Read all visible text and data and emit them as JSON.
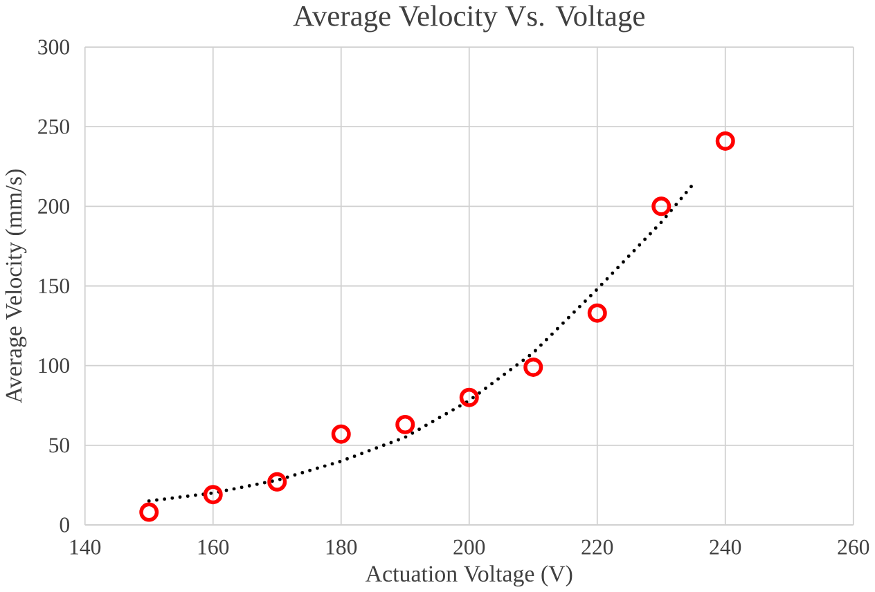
{
  "chart_data": {
    "type": "scatter",
    "title": "Average Velocity Vs. Voltage",
    "xlabel": "Actuation Voltage (V)",
    "ylabel": "Average Velocity (mm/s)",
    "x": [
      150,
      160,
      170,
      180,
      190,
      200,
      210,
      220,
      230,
      240
    ],
    "series": [
      {
        "color": "#ff0000",
        "values": [
          8,
          19,
          27,
          57,
          63,
          80,
          99,
          133,
          200,
          241
        ],
        "marker": "circle"
      },
      {
        "type": "line",
        "color": "#000000",
        "x": [
          150,
          160,
          170,
          180,
          190,
          200,
          210,
          220,
          230,
          235
        ],
        "values": [
          15,
          20,
          28,
          40,
          55,
          78,
          108,
          148,
          190,
          214
        ],
        "line_style": "dotted",
        "marker": "none"
      }
    ],
    "xlim": [
      140,
      260
    ],
    "xticks": [
      140,
      160,
      180,
      200,
      220,
      240,
      260
    ],
    "ylim": [
      0,
      300
    ],
    "yticks": [
      0,
      50,
      100,
      150,
      200,
      250,
      300
    ],
    "grid": true
  }
}
